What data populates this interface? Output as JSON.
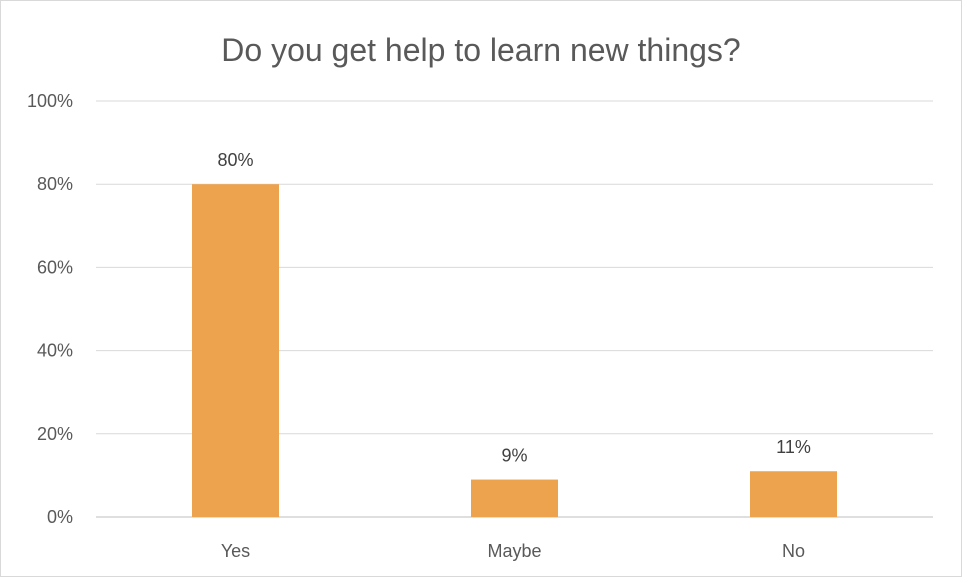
{
  "chart_data": {
    "type": "bar",
    "title": "Do you get help to learn new things?",
    "categories": [
      "Yes",
      "Maybe",
      "No"
    ],
    "values": [
      80,
      9,
      11
    ],
    "value_labels": [
      "80%",
      "9%",
      "11%"
    ],
    "ylim": [
      0,
      100
    ],
    "yticks": [
      0,
      20,
      40,
      60,
      80,
      100
    ],
    "ytick_labels": [
      "0%",
      "20%",
      "40%",
      "60%",
      "80%",
      "100%"
    ],
    "xlabel": "",
    "ylabel": "",
    "grid": true,
    "legend": "none",
    "bar_color": "#EDA24D"
  }
}
